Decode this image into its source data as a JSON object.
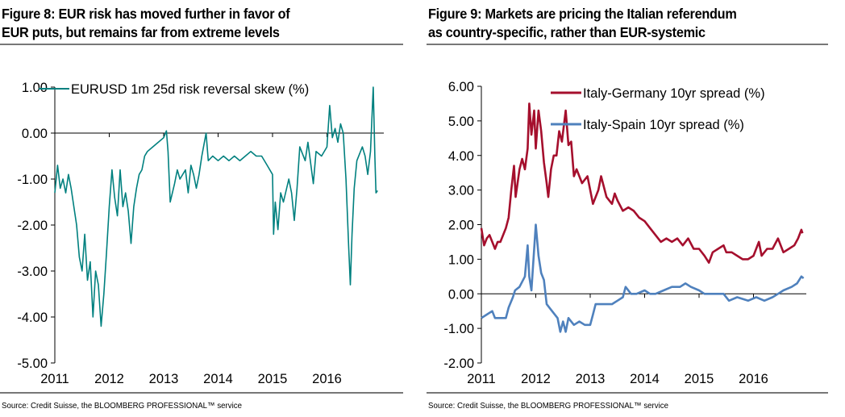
{
  "figures": [
    {
      "title_line1": "Figure 8: EUR risk has moved further in favor of",
      "title_line2": "EUR puts, but remains far from extreme levels",
      "source": "Source: Credit Suisse, the BLOOMBERG PROFESSIONAL™ service"
    },
    {
      "title_line1": "Figure 9: Markets are pricing the Italian referendum",
      "title_line2": "as country-specific, rather than EUR-systemic",
      "source": "Source: Credit Suisse, the BLOOMBERG PROFESSIONAL™ service"
    }
  ],
  "chart_data": [
    {
      "type": "line",
      "title": "Figure 8: EUR risk has moved further in favor of EUR puts, but remains far from extreme levels",
      "xlabel": "",
      "ylabel": "",
      "xlim": [
        2011,
        2017
      ],
      "ylim": [
        -5,
        1
      ],
      "x_ticks": [
        "2011",
        "2012",
        "2013",
        "2014",
        "2015",
        "2016"
      ],
      "y_ticks": [
        "1.00",
        "0.00",
        "-1.00",
        "-2.00",
        "-3.00",
        "-4.00",
        "-5.00"
      ],
      "grid": false,
      "legend": "top",
      "series": [
        {
          "name": "EURUSD 1m 25d risk reversal skew (%)",
          "color": "#00807F",
          "x": [
            2011.0,
            2011.05,
            2011.1,
            2011.15,
            2011.2,
            2011.25,
            2011.3,
            2011.35,
            2011.4,
            2011.45,
            2011.5,
            2011.55,
            2011.6,
            2011.65,
            2011.7,
            2011.75,
            2011.8,
            2011.85,
            2011.9,
            2011.95,
            2012.0,
            2012.05,
            2012.1,
            2012.15,
            2012.2,
            2012.25,
            2012.3,
            2012.35,
            2012.4,
            2012.45,
            2012.5,
            2012.55,
            2012.6,
            2012.65,
            2012.7,
            2012.8,
            2012.9,
            2013.0,
            2013.05,
            2013.08,
            2013.12,
            2013.2,
            2013.25,
            2013.3,
            2013.4,
            2013.45,
            2013.5,
            2013.55,
            2013.6,
            2013.65,
            2013.7,
            2013.78,
            2013.82,
            2013.9,
            2014.0,
            2014.1,
            2014.2,
            2014.3,
            2014.4,
            2014.5,
            2014.6,
            2014.7,
            2014.8,
            2014.9,
            2015.0,
            2015.02,
            2015.05,
            2015.1,
            2015.15,
            2015.2,
            2015.3,
            2015.35,
            2015.4,
            2015.45,
            2015.5,
            2015.6,
            2015.65,
            2015.75,
            2015.8,
            2015.9,
            2016.0,
            2016.05,
            2016.1,
            2016.15,
            2016.2,
            2016.25,
            2016.3,
            2016.35,
            2016.4,
            2016.43,
            2016.46,
            2016.5,
            2016.55,
            2016.65,
            2016.7,
            2016.75,
            2016.8,
            2016.85,
            2016.88,
            2016.9,
            2016.93
          ],
          "y": [
            -1.3,
            -0.7,
            -1.2,
            -1.0,
            -1.3,
            -0.9,
            -1.2,
            -1.6,
            -2.0,
            -2.7,
            -3.0,
            -2.2,
            -3.2,
            -2.8,
            -4.0,
            -3.0,
            -3.3,
            -4.2,
            -3.5,
            -2.6,
            -1.6,
            -0.8,
            -1.4,
            -1.8,
            -0.8,
            -1.6,
            -1.3,
            -1.7,
            -2.4,
            -1.6,
            -1.2,
            -0.9,
            -0.8,
            -0.5,
            -0.4,
            -0.3,
            -0.2,
            -0.1,
            0.05,
            -0.4,
            -1.5,
            -1.1,
            -0.8,
            -1.0,
            -0.8,
            -1.3,
            -0.7,
            -0.9,
            -1.2,
            -0.9,
            -0.5,
            0.0,
            -0.6,
            -0.5,
            -0.6,
            -0.5,
            -0.6,
            -0.5,
            -0.6,
            -0.5,
            -0.4,
            -0.5,
            -0.5,
            -0.7,
            -0.9,
            -2.2,
            -1.5,
            -2.1,
            -1.3,
            -1.5,
            -1.0,
            -1.3,
            -1.9,
            -1.2,
            -0.3,
            -0.6,
            -0.2,
            -1.1,
            -0.4,
            -0.5,
            -0.3,
            0.6,
            -0.1,
            0.1,
            -0.2,
            0.2,
            0.0,
            -1.0,
            -2.5,
            -3.3,
            -2.2,
            -1.2,
            -0.6,
            -0.3,
            -0.5,
            -0.9,
            -0.4,
            1.0,
            -0.5,
            -1.3,
            -1.25
          ]
        }
      ]
    },
    {
      "type": "line",
      "title": "Figure 9: Markets are pricing the Italian referendum as country-specific, rather than EUR-systemic",
      "xlabel": "",
      "ylabel": "",
      "xlim": [
        2011,
        2017
      ],
      "ylim": [
        -2,
        6
      ],
      "x_ticks": [
        "2011",
        "2012",
        "2013",
        "2014",
        "2015",
        "2016"
      ],
      "y_ticks": [
        "6.00",
        "5.00",
        "4.00",
        "3.00",
        "2.00",
        "1.00",
        "0.00",
        "-1.00",
        "-2.00"
      ],
      "grid": false,
      "legend": "top-right",
      "series": [
        {
          "name": "Italy-Germany 10yr spread (%)",
          "color": "#A50F2D",
          "x": [
            2011.0,
            2011.05,
            2011.1,
            2011.15,
            2011.2,
            2011.25,
            2011.3,
            2011.35,
            2011.4,
            2011.45,
            2011.5,
            2011.55,
            2011.6,
            2011.63,
            2011.7,
            2011.75,
            2011.8,
            2011.85,
            2011.88,
            2011.92,
            2011.97,
            2012.0,
            2012.05,
            2012.1,
            2012.15,
            2012.2,
            2012.23,
            2012.28,
            2012.33,
            2012.38,
            2012.43,
            2012.48,
            2012.55,
            2012.6,
            2012.65,
            2012.7,
            2012.75,
            2012.85,
            2012.95,
            2013.05,
            2013.15,
            2013.2,
            2013.3,
            2013.4,
            2013.45,
            2013.5,
            2013.6,
            2013.7,
            2013.8,
            2013.9,
            2014.0,
            2014.1,
            2014.2,
            2014.3,
            2014.4,
            2014.5,
            2014.6,
            2014.7,
            2014.8,
            2014.9,
            2015.0,
            2015.1,
            2015.18,
            2015.25,
            2015.35,
            2015.45,
            2015.5,
            2015.6,
            2015.7,
            2015.8,
            2015.9,
            2016.0,
            2016.1,
            2016.15,
            2016.25,
            2016.35,
            2016.45,
            2016.55,
            2016.65,
            2016.75,
            2016.82,
            2016.88,
            2016.9
          ],
          "y": [
            1.9,
            1.4,
            1.6,
            1.7,
            1.5,
            1.3,
            1.5,
            1.5,
            1.7,
            1.9,
            2.2,
            3.0,
            3.7,
            2.8,
            3.6,
            3.9,
            3.6,
            4.2,
            5.5,
            4.6,
            5.3,
            4.2,
            5.3,
            4.7,
            3.8,
            3.2,
            2.8,
            3.6,
            4.0,
            4.0,
            4.7,
            4.4,
            5.3,
            4.3,
            4.4,
            3.4,
            3.6,
            3.2,
            3.4,
            2.6,
            3.0,
            3.4,
            2.8,
            2.6,
            2.9,
            2.7,
            2.4,
            2.5,
            2.4,
            2.2,
            2.1,
            1.9,
            1.7,
            1.5,
            1.6,
            1.5,
            1.6,
            1.4,
            1.6,
            1.3,
            1.3,
            1.1,
            0.9,
            1.2,
            1.3,
            1.4,
            1.2,
            1.2,
            1.1,
            1.0,
            1.0,
            1.1,
            1.5,
            1.1,
            1.3,
            1.3,
            1.6,
            1.2,
            1.3,
            1.4,
            1.6,
            1.85,
            1.75
          ]
        },
        {
          "name": "Italy-Spain 10yr spread (%)",
          "color": "#4F81BD",
          "x": [
            2011.0,
            2011.1,
            2011.2,
            2011.25,
            2011.35,
            2011.45,
            2011.5,
            2011.58,
            2011.62,
            2011.7,
            2011.8,
            2011.85,
            2011.88,
            2011.92,
            2011.97,
            2012.0,
            2012.05,
            2012.1,
            2012.15,
            2012.2,
            2012.3,
            2012.4,
            2012.45,
            2012.5,
            2012.55,
            2012.6,
            2012.7,
            2012.8,
            2012.9,
            2013.0,
            2013.05,
            2013.1,
            2013.2,
            2013.3,
            2013.4,
            2013.5,
            2013.6,
            2013.65,
            2013.75,
            2013.85,
            2014.0,
            2014.1,
            2014.2,
            2014.35,
            2014.5,
            2014.65,
            2014.75,
            2014.85,
            2015.0,
            2015.1,
            2015.3,
            2015.45,
            2015.55,
            2015.7,
            2015.9,
            2016.05,
            2016.2,
            2016.35,
            2016.45,
            2016.55,
            2016.7,
            2016.8,
            2016.88,
            2016.92
          ],
          "y": [
            -0.7,
            -0.6,
            -0.5,
            -0.7,
            -0.7,
            -0.7,
            -0.4,
            -0.1,
            0.1,
            0.2,
            0.5,
            1.4,
            0.5,
            0.1,
            1.3,
            2.0,
            1.1,
            0.6,
            0.4,
            -0.3,
            -0.5,
            -0.7,
            -1.1,
            -0.8,
            -1.1,
            -0.7,
            -0.9,
            -0.8,
            -0.9,
            -0.9,
            -0.6,
            -0.3,
            -0.3,
            -0.3,
            -0.3,
            -0.2,
            -0.1,
            0.2,
            0.0,
            0.0,
            0.1,
            0.0,
            0.0,
            0.1,
            0.2,
            0.2,
            0.3,
            0.2,
            0.1,
            0.0,
            0.0,
            0.0,
            -0.2,
            -0.1,
            -0.2,
            -0.1,
            -0.2,
            -0.1,
            0.0,
            0.1,
            0.2,
            0.3,
            0.5,
            0.45
          ]
        }
      ]
    }
  ]
}
